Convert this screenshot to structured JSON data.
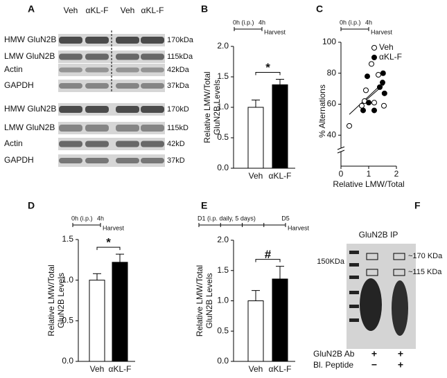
{
  "panels": {
    "a": {
      "label": "A",
      "columns": [
        "Veh",
        "αKL-F",
        "Veh",
        "αKL-F"
      ],
      "blots": [
        {
          "rows": [
            "HMW GluN2B",
            "LMW GluN2B",
            "Actin",
            "GAPDH"
          ],
          "sizes": [
            "170kDa",
            "115kDa",
            "42kDa",
            "37kDa"
          ]
        },
        {
          "rows": [
            "HMW GluN2B",
            "LMW GluN2B",
            "Actin",
            "GAPDH"
          ],
          "sizes": [
            "170kD",
            "115kD",
            "42kD",
            "37kD"
          ]
        }
      ]
    },
    "f": {
      "label": "F",
      "title": "GluN2B IP",
      "marker": "150KDa",
      "bands": [
        "~170 KDa",
        "~115 KDa"
      ],
      "conditions": [
        {
          "name": "GluN2B Ab",
          "signs": [
            "+",
            "+"
          ]
        },
        {
          "name": "Bl. Peptide",
          "signs": [
            "−",
            "+"
          ]
        }
      ]
    }
  },
  "chart_data": [
    {
      "type": "bar",
      "panel_label": "B",
      "timeline": [
        "0h (i.p.)",
        "4h",
        "Harvest"
      ],
      "ylabel": [
        "Relative LMW/Total",
        "GluN2B Levels"
      ],
      "categories": [
        "Veh",
        "αKL-F"
      ],
      "values": [
        1.0,
        1.37
      ],
      "errors": [
        0.12,
        0.09
      ],
      "colors": [
        "#ffffff",
        "#000000"
      ],
      "ylim": [
        0,
        2
      ],
      "yticks": [
        {
          "value": 0,
          "label": "0.0"
        },
        {
          "value": 0.5,
          "label": "0.5"
        },
        {
          "value": 1,
          "label": "1.0"
        },
        {
          "value": 1.5,
          "label": "1.5"
        },
        {
          "value": 2,
          "label": "2.0"
        }
      ],
      "annotation": "*"
    },
    {
      "type": "scatter",
      "panel_label": "C",
      "timeline": [
        "0h (i.p.)",
        "4h",
        "Harvest"
      ],
      "xlabel": "Relative LMW/Total",
      "ylabel": "% Alternations",
      "xlim": [
        0,
        2
      ],
      "xticks": [
        0,
        1,
        2
      ],
      "ylim": [
        20,
        100
      ],
      "yticks": [
        40,
        60,
        80,
        100
      ],
      "legend": "upper right",
      "series": [
        {
          "name": "Veh",
          "color": "#000000",
          "fill": "#ffffff",
          "x": [
            0.3,
            0.75,
            0.85,
            0.9,
            1.1,
            1.2,
            1.35,
            1.55
          ],
          "values": [
            46,
            59,
            62,
            69,
            86,
            61,
            79,
            59
          ]
        },
        {
          "name": "αKL-F",
          "color": "#000000",
          "fill": "#000000",
          "x": [
            0.8,
            0.95,
            1.0,
            1.2,
            1.4,
            1.5,
            1.52,
            1.57
          ],
          "values": [
            56,
            78,
            61,
            56,
            71,
            74,
            80,
            67
          ]
        }
      ]
    },
    {
      "type": "bar",
      "panel_label": "D",
      "timeline": [
        "0h (i.p.)",
        "4h",
        "Harvest"
      ],
      "ylabel": [
        "Relative LMW/Total",
        "GluN2B Levels"
      ],
      "categories": [
        "Veh",
        "αKL-F"
      ],
      "values": [
        1.0,
        1.22
      ],
      "errors": [
        0.08,
        0.1
      ],
      "colors": [
        "#ffffff",
        "#000000"
      ],
      "ylim": [
        0,
        1.5
      ],
      "yticks": [
        {
          "value": 0,
          "label": "0.0"
        },
        {
          "value": 0.5,
          "label": "0.5"
        },
        {
          "value": 1,
          "label": "1.0"
        },
        {
          "value": 1.5,
          "label": "1.5"
        }
      ],
      "annotation": "*"
    },
    {
      "type": "bar",
      "panel_label": "E",
      "timeline": [
        "D1 (i.p. daily, 5 days)",
        "D5",
        "Harvest"
      ],
      "ylabel": [
        "Relative LMW/Total",
        "GluN2B Levels"
      ],
      "categories": [
        "Veh",
        "αKL-F"
      ],
      "values": [
        1.0,
        1.36
      ],
      "errors": [
        0.17,
        0.21
      ],
      "colors": [
        "#ffffff",
        "#000000"
      ],
      "ylim": [
        0,
        2
      ],
      "yticks": [
        {
          "value": 0,
          "label": "0.0"
        },
        {
          "value": 0.5,
          "label": "0.5"
        },
        {
          "value": 1,
          "label": "1.0"
        },
        {
          "value": 1.5,
          "label": "1.5"
        },
        {
          "value": 2,
          "label": "2.0"
        }
      ],
      "annotation": "#"
    }
  ]
}
